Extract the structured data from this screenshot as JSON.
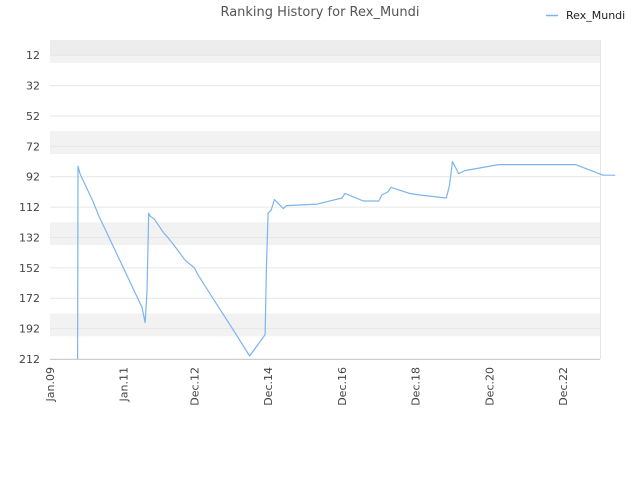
{
  "chart_data": {
    "type": "line",
    "title": "Ranking History for Rex_Mundi",
    "xlabel": "",
    "ylabel": "",
    "legend": {
      "position": "top-right",
      "entries": [
        "Rex_Mundi"
      ]
    },
    "grid": true,
    "y_inverted": true,
    "ylim": [
      212,
      2
    ],
    "xlim": [
      "2009-01-01",
      "2023-12-01"
    ],
    "y_ticks": [
      12,
      32,
      52,
      72,
      92,
      112,
      132,
      152,
      172,
      192,
      212
    ],
    "x_ticks": [
      {
        "label": "Jan.09",
        "date": "2009-01-01"
      },
      {
        "label": "Jan.11",
        "date": "2011-01-01"
      },
      {
        "label": "Dec.12",
        "date": "2012-12-01"
      },
      {
        "label": "Dec.14",
        "date": "2014-12-01"
      },
      {
        "label": "Dec.16",
        "date": "2016-12-01"
      },
      {
        "label": "Dec.18",
        "date": "2018-12-01"
      },
      {
        "label": "Dec.20",
        "date": "2020-12-01"
      },
      {
        "label": "Dec.22",
        "date": "2022-12-01"
      }
    ],
    "colors": {
      "series": "#7cb5ec",
      "band": "#f2f2f2",
      "grid": "#e6e6e6",
      "axis": "#cccccc"
    },
    "series": [
      {
        "name": "Rex_Mundi",
        "points": [
          [
            "2009-10-01",
            212
          ],
          [
            "2009-10-05",
            85
          ],
          [
            "2009-10-25",
            90
          ],
          [
            "2010-03-01",
            108
          ],
          [
            "2010-05-01",
            118
          ],
          [
            "2011-07-01",
            178
          ],
          [
            "2011-08-01",
            188
          ],
          [
            "2011-08-20",
            168
          ],
          [
            "2011-09-05",
            116
          ],
          [
            "2011-09-20",
            118
          ],
          [
            "2011-11-01",
            120
          ],
          [
            "2012-02-01",
            129
          ],
          [
            "2012-03-01",
            131
          ],
          [
            "2012-05-01",
            136
          ],
          [
            "2012-09-01",
            147
          ],
          [
            "2012-12-01",
            152
          ],
          [
            "2013-01-01",
            156
          ],
          [
            "2013-06-01",
            172
          ],
          [
            "2014-01-01",
            194
          ],
          [
            "2014-06-01",
            210
          ],
          [
            "2014-11-01",
            196
          ],
          [
            "2014-11-15",
            150
          ],
          [
            "2014-12-01",
            116
          ],
          [
            "2015-01-01",
            114
          ],
          [
            "2015-02-01",
            107
          ],
          [
            "2015-04-01",
            111
          ],
          [
            "2015-05-01",
            113
          ],
          [
            "2015-06-01",
            111
          ],
          [
            "2016-04-01",
            110
          ],
          [
            "2016-12-01",
            106
          ],
          [
            "2017-01-01",
            103
          ],
          [
            "2017-07-01",
            108
          ],
          [
            "2017-12-01",
            108
          ],
          [
            "2018-01-01",
            104
          ],
          [
            "2018-03-01",
            102
          ],
          [
            "2018-04-01",
            99
          ],
          [
            "2018-10-01",
            103
          ],
          [
            "2019-01-01",
            104
          ],
          [
            "2019-10-01",
            106
          ],
          [
            "2019-11-01",
            98
          ],
          [
            "2019-12-01",
            82
          ],
          [
            "2020-02-01",
            90
          ],
          [
            "2020-04-01",
            88
          ],
          [
            "2021-03-01",
            84
          ],
          [
            "2022-01-01",
            84
          ],
          [
            "2023-04-01",
            84
          ],
          [
            "2024-01-01",
            91
          ],
          [
            "2024-05-01",
            91
          ]
        ]
      }
    ]
  }
}
